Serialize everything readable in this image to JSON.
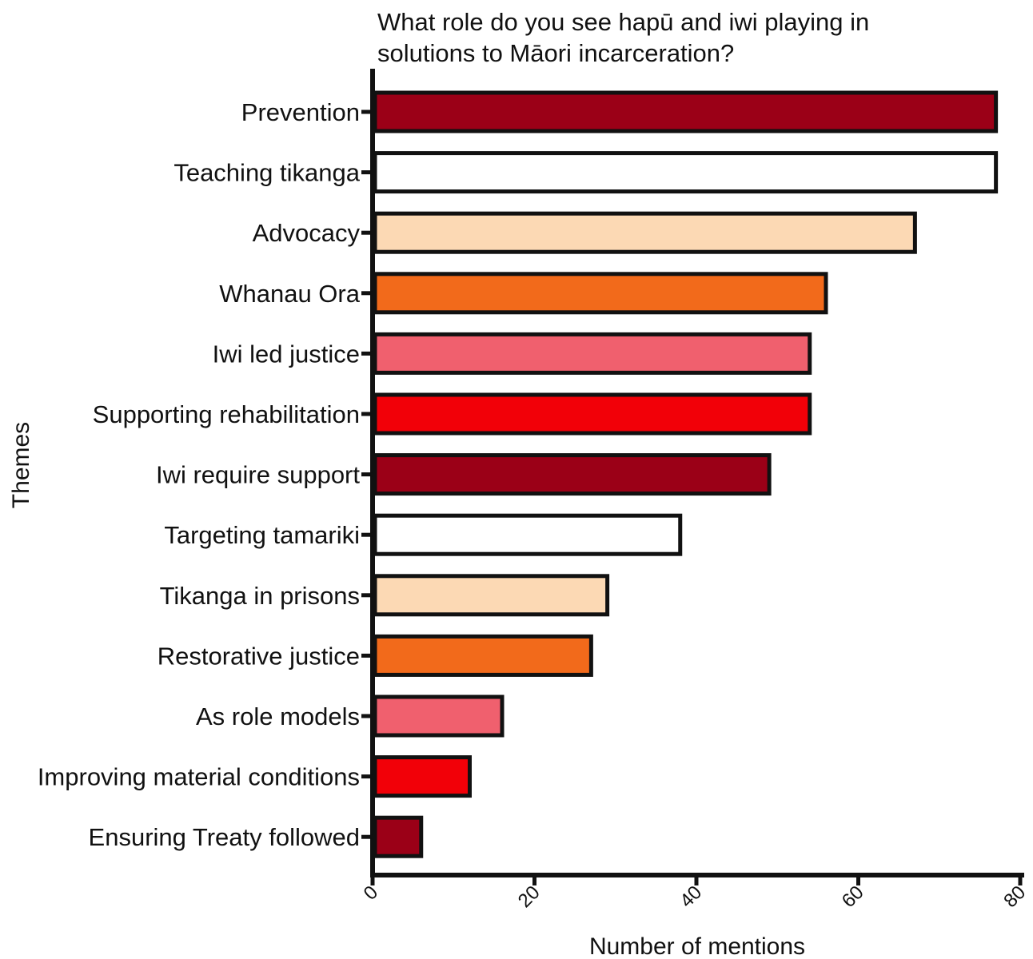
{
  "chart_data": {
    "type": "bar",
    "orientation": "horizontal",
    "title": "What role do you see hapū and iwi playing in solutions to Māori incarceration?",
    "title_lines": [
      "What role do you see hapū and iwi playing in",
      "solutions to Māori incarceration?"
    ],
    "xlabel": "Number of mentions",
    "ylabel": "Themes",
    "xlim": [
      0,
      80
    ],
    "xticks": [
      0,
      20,
      40,
      60,
      80
    ],
    "grid": false,
    "legend": "none",
    "categories": [
      "Prevention",
      "Teaching tikanga",
      "Advocacy",
      "Whanau Ora",
      "Iwi led justice",
      "Supporting rehabilitation",
      "Iwi require support",
      "Targeting tamariki",
      "Tikanga in prisons",
      "Restorative justice",
      "As role models",
      "Improving material conditions",
      "Ensuring Treaty followed"
    ],
    "values": [
      77,
      77,
      67,
      56,
      54,
      54,
      49,
      38,
      29,
      27,
      16,
      12,
      6
    ],
    "bar_colors": [
      "#9b0017",
      "#ffffff",
      "#fcd9b4",
      "#f26a1b",
      "#f0606e",
      "#f20008",
      "#9b0017",
      "#ffffff",
      "#fcd9b4",
      "#f26a1b",
      "#f0606e",
      "#f20008",
      "#9b0017"
    ],
    "edge_color": "#111111"
  }
}
